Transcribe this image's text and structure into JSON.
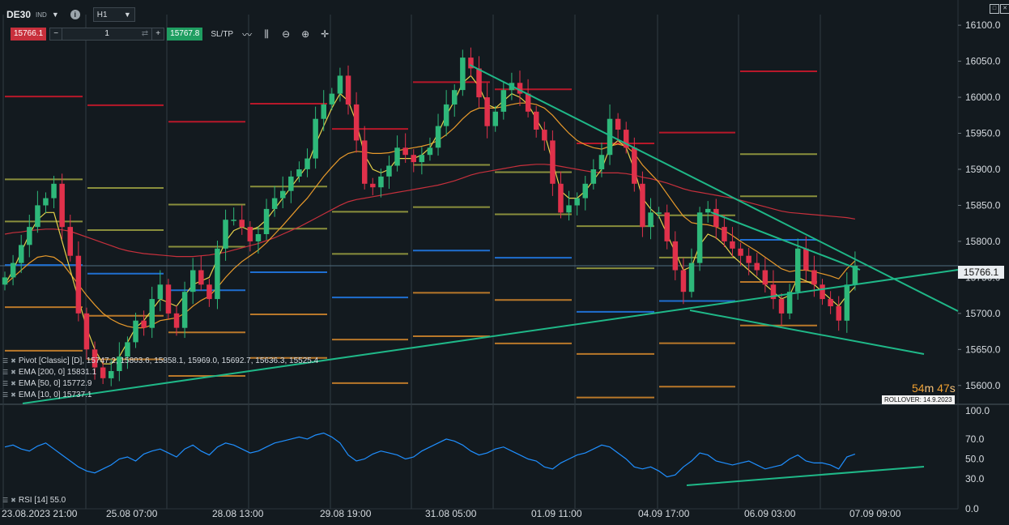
{
  "toolbar": {
    "symbol": "DE30",
    "symbol_sub": "IND",
    "info": "i",
    "timeframe": "H1",
    "sell_price": "15766.1",
    "quantity": "1",
    "minus": "−",
    "plus": "+",
    "buy_price": "15767.8",
    "sltp": "SL/TP",
    "tools": [
      "line-chart-icon",
      "candles-icon",
      "zoom-out-icon",
      "zoom-in-icon",
      "crosshair-icon"
    ]
  },
  "colors": {
    "background": "#131a1f",
    "bull": "#2eb87a",
    "bear": "#e0314b",
    "ema10": "#e6d14a",
    "ema50": "#e89a2b",
    "ema200": "#c7303c",
    "trendline": "#1fb888",
    "rsi": "#1f8fff",
    "pivot_blue": "#1f6fd1",
    "pivot_olive": "#8a8f3c",
    "pivot_orange": "#b9782a",
    "pivot_red": "#b8182a"
  },
  "legends": [
    {
      "label": "Pivot [Classic] [D], 15747.2, 15803.6, 15858.1, 15969.0, 15692.7, 15636.3, 15525.4"
    },
    {
      "label": "EMA [200, 0] 15831.1"
    },
    {
      "label": "EMA [50, 0] 15772.9"
    },
    {
      "label": "EMA [10, 0] 15737.1"
    }
  ],
  "rsi_legend": "RSI [14] 55.0",
  "timer": {
    "minutes": "54",
    "m": "m",
    "seconds": "47",
    "s": "s"
  },
  "rollover": "ROLLOVER: 14.9.2023",
  "current_price_label": "15766.1",
  "chart_data": {
    "type": "candlestick",
    "title": "",
    "y_ticks": [
      15600.0,
      15650.0,
      15700.0,
      15750.0,
      15800.0,
      15850.0,
      15900.0,
      15950.0,
      16000.0,
      16050.0,
      16100.0
    ],
    "y_range": [
      15575,
      16135
    ],
    "current_price": 15766.1,
    "x_labels": [
      "23.08.2023 21:00",
      "25.08 07:00",
      "28.08 13:00",
      "29.08 19:00",
      "31.08 05:00",
      "01.09 11:00",
      "04.09 17:00",
      "06.09 03:00",
      "07.09 09:00"
    ],
    "closes": [
      15750,
      15770,
      15795,
      15820,
      15850,
      15860,
      15880,
      15820,
      15780,
      15700,
      15650,
      15625,
      15610,
      15620,
      15640,
      15660,
      15690,
      15680,
      15720,
      15740,
      15700,
      15680,
      15730,
      15760,
      15740,
      15720,
      15790,
      15830,
      15830,
      15820,
      15800,
      15810,
      15845,
      15860,
      15870,
      15890,
      15900,
      15915,
      15970,
      15990,
      16005,
      16030,
      15990,
      15940,
      15880,
      15875,
      15890,
      15905,
      15930,
      15920,
      15910,
      15920,
      15930,
      15960,
      15990,
      16010,
      16055,
      16040,
      16000,
      15960,
      15980,
      16010,
      16020,
      16005,
      15980,
      15955,
      15940,
      15880,
      15840,
      15850,
      15860,
      15880,
      15900,
      15920,
      15970,
      15955,
      15930,
      15880,
      15820,
      15840,
      15840,
      15800,
      15760,
      15730,
      15770,
      15840,
      15845,
      15820,
      15800,
      15790,
      15780,
      15770,
      15760,
      15740,
      15720,
      15700,
      15730,
      15790,
      15760,
      15740,
      15720,
      15710,
      15690,
      15740,
      15766
    ],
    "ema10": [
      15740,
      15760,
      15785,
      15810,
      15830,
      15840,
      15840,
      15800,
      15760,
      15720,
      15680,
      15650,
      15630,
      15630,
      15640,
      15660,
      15680,
      15690,
      15705,
      15720,
      15715,
      15710,
      15725,
      15740,
      15745,
      15750,
      15775,
      15800,
      15815,
      15820,
      15815,
      15820,
      15830,
      15845,
      15860,
      15875,
      15890,
      15905,
      15935,
      15960,
      15985,
      16005,
      15995,
      15965,
      15920,
      15900,
      15895,
      15900,
      15915,
      15915,
      15915,
      15920,
      15930,
      15950,
      15975,
      15995,
      16020,
      16030,
      16015,
      15990,
      15985,
      15995,
      16005,
      16000,
      15990,
      15970,
      15950,
      15910,
      15870,
      15860,
      15860,
      15870,
      15885,
      15900,
      15930,
      15940,
      15930,
      15900,
      15860,
      15845,
      15835,
      15810,
      15785,
      15760,
      15765,
      15795,
      15810,
      15805,
      15795,
      15780,
      15770,
      15760,
      15750,
      15740,
      15730,
      15720,
      15725,
      15750,
      15745,
      15740,
      15730,
      15720,
      15710,
      15725,
      15737
    ],
    "ema50": [
      15740,
      15750,
      15760,
      15770,
      15778,
      15780,
      15778,
      15770,
      15755,
      15740,
      15725,
      15712,
      15700,
      15692,
      15686,
      15682,
      15680,
      15680,
      15684,
      15690,
      15692,
      15694,
      15700,
      15710,
      15718,
      15724,
      15736,
      15750,
      15762,
      15772,
      15780,
      15788,
      15798,
      15810,
      15822,
      15835,
      15848,
      15860,
      15875,
      15890,
      15903,
      15915,
      15922,
      15925,
      15924,
      15922,
      15922,
      15923,
      15926,
      15928,
      15930,
      15932,
      15935,
      15940,
      15948,
      15958,
      15970,
      15980,
      15985,
      15985,
      15985,
      15987,
      15990,
      15992,
      15992,
      15990,
      15985,
      15975,
      15962,
      15950,
      15940,
      15934,
      15930,
      15928,
      15932,
      15935,
      15932,
      15922,
      15906,
      15894,
      15882,
      15866,
      15850,
      15835,
      15826,
      15824,
      15823,
      15820,
      15815,
      15808,
      15800,
      15793,
      15786,
      15778,
      15770,
      15762,
      15758,
      15760,
      15760,
      15758,
      15755,
      15752,
      15748,
      15762,
      15773
    ],
    "ema200": [
      15810,
      15812,
      15813,
      15815,
      15816,
      15817,
      15817,
      15816,
      15814,
      15810,
      15806,
      15802,
      15798,
      15794,
      15790,
      15787,
      15785,
      15783,
      15782,
      15781,
      15780,
      15779,
      15779,
      15779,
      15780,
      15781,
      15783,
      15785,
      15788,
      15791,
      15794,
      15797,
      15801,
      15805,
      15810,
      15815,
      15820,
      15826,
      15832,
      15838,
      15844,
      15850,
      15855,
      15858,
      15860,
      15862,
      15864,
      15866,
      15868,
      15870,
      15872,
      15874,
      15876,
      15878,
      15881,
      15884,
      15888,
      15892,
      15895,
      15897,
      15899,
      15901,
      15903,
      15905,
      15906,
      15907,
      15907,
      15906,
      15904,
      15902,
      15900,
      15898,
      15896,
      15895,
      15895,
      15895,
      15894,
      15892,
      15889,
      15887,
      15884,
      15881,
      15877,
      15873,
      15870,
      15868,
      15866,
      15864,
      15862,
      15860,
      15857,
      15854,
      15851,
      15848,
      15845,
      15842,
      15840,
      15839,
      15838,
      15837,
      15836,
      15835,
      15834,
      15833,
      15831
    ],
    "pivot_levels": [
      15525.4,
      15636.3,
      15692.7,
      15747.2,
      15803.6,
      15858.1,
      15969.0
    ],
    "rsi": {
      "label": "RSI [14]",
      "current": 55.0,
      "y_ticks": [
        0.0,
        30.0,
        50.0,
        70.0,
        100.0
      ],
      "values": [
        62,
        64,
        60,
        58,
        63,
        66,
        60,
        54,
        48,
        42,
        38,
        36,
        40,
        44,
        50,
        52,
        48,
        55,
        58,
        60,
        56,
        52,
        60,
        64,
        58,
        54,
        62,
        66,
        64,
        60,
        56,
        58,
        62,
        66,
        68,
        70,
        72,
        70,
        74,
        76,
        72,
        66,
        54,
        48,
        50,
        55,
        58,
        56,
        54,
        50,
        52,
        58,
        62,
        66,
        70,
        68,
        64,
        58,
        54,
        56,
        60,
        62,
        58,
        54,
        50,
        48,
        42,
        40,
        46,
        50,
        54,
        56,
        60,
        64,
        62,
        56,
        50,
        42,
        40,
        42,
        38,
        32,
        34,
        42,
        48,
        56,
        54,
        48,
        46,
        44,
        46,
        48,
        44,
        40,
        42,
        44,
        50,
        54,
        48,
        46,
        46,
        44,
        40,
        52,
        55
      ]
    }
  }
}
